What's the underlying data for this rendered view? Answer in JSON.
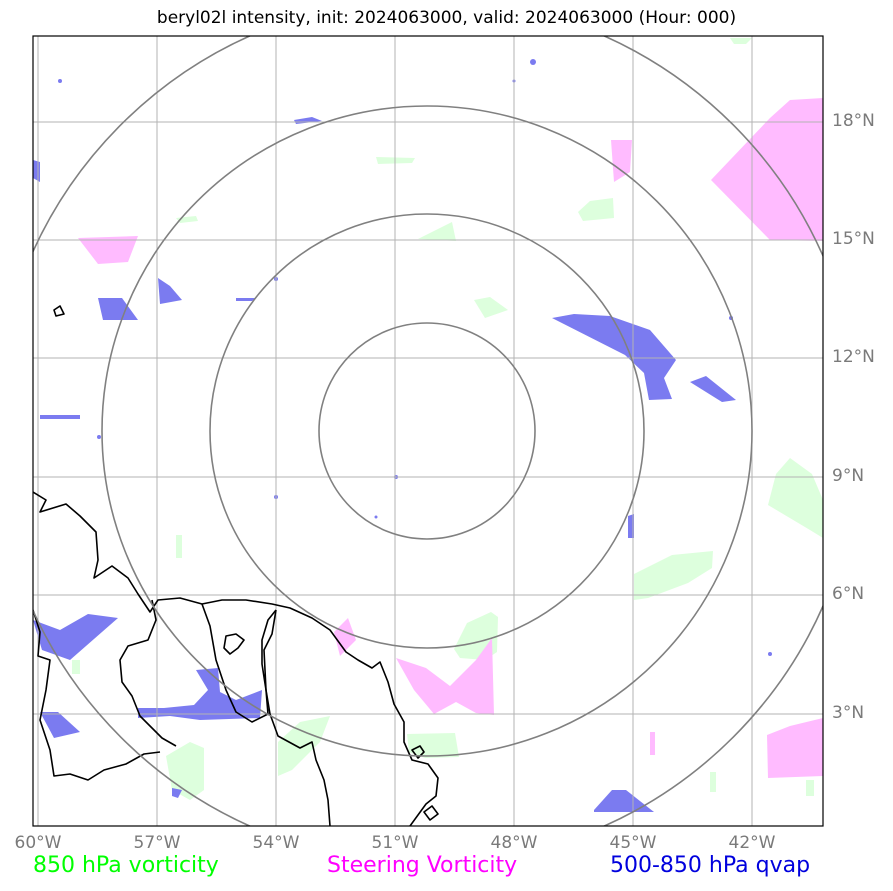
{
  "title": "beryl02l intensity, init: 2024063000, valid: 2024063000 (Hour: 000)",
  "map": {
    "projection": "plate carree",
    "lon_range": [
      "60°W",
      "40°W"
    ],
    "lat_range": [
      "0°N",
      "20°N"
    ],
    "lon_labels": [
      "60°W",
      "57°W",
      "54°W",
      "51°W",
      "48°W",
      "45°W",
      "42°W"
    ],
    "lat_labels": [
      "18°N",
      "15°N",
      "12°N",
      "9°N",
      "6°N",
      "3°N"
    ],
    "gridlines": true,
    "range_rings": 4,
    "ring_color": "#808080",
    "coastline_color": "#000000"
  },
  "legend": {
    "vorticity_850": {
      "label": "850 hPa vorticity",
      "color": "#00ff00",
      "fill": "#ddffdd"
    },
    "steering_vorticity": {
      "label": "Steering Vorticity",
      "color": "#ff00ff",
      "fill": "#ffbbff"
    },
    "qvap": {
      "label": "500-850 hPa qvap",
      "color": "#0000dd",
      "fill": "#7b7bf0"
    }
  }
}
